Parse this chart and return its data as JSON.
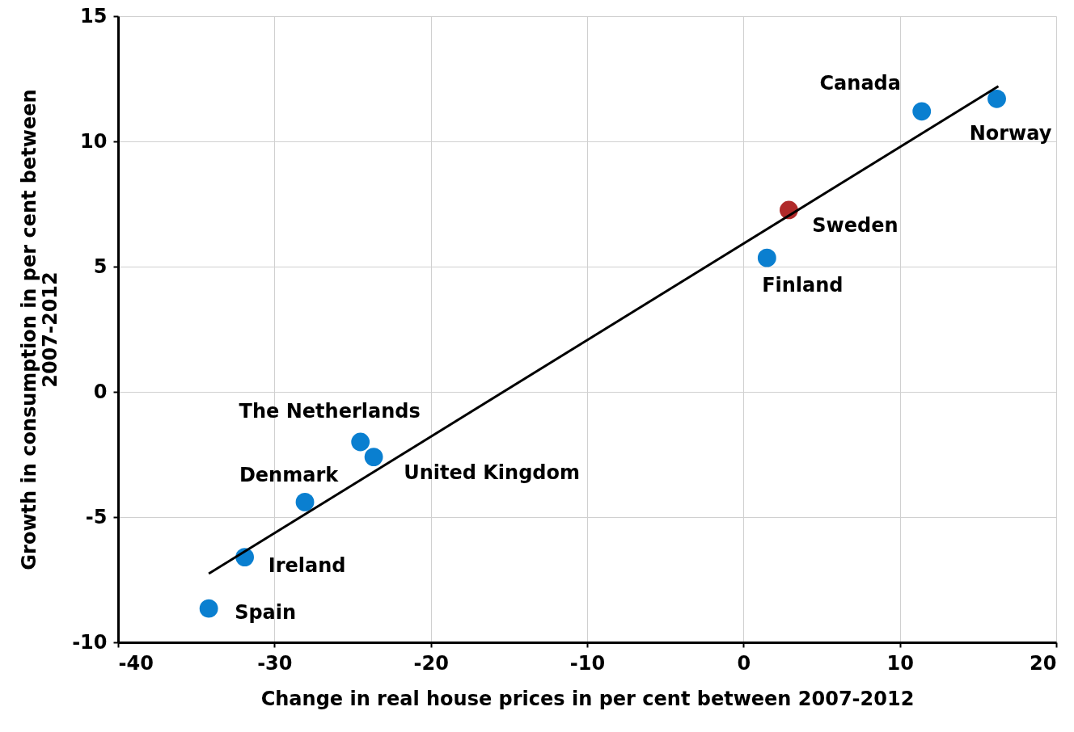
{
  "chart_data": {
    "type": "scatter",
    "xlabel": "Change in real house prices in per cent between 2007-2012",
    "ylabel": "Growth in consumption in per cent between 2007-2012",
    "xlim": [
      -40,
      20
    ],
    "xticks": [
      -40,
      -30,
      -20,
      -10,
      0,
      10,
      20
    ],
    "ylim": [
      -10,
      15
    ],
    "yticks": [
      -10,
      -5,
      0,
      5,
      10,
      15
    ],
    "grid": true,
    "series": [
      {
        "marker": "circle",
        "x": [
          -34.2,
          -31.9,
          -28.05,
          -24.5,
          -23.65,
          1.5,
          2.9,
          11.4,
          16.2
        ],
        "values": [
          -8.65,
          -6.6,
          -4.4,
          -2.0,
          -2.6,
          5.35,
          7.26,
          11.2,
          11.7
        ],
        "colors": [
          "#0a7fd0",
          "#0a7fd0",
          "#0a7fd0",
          "#0a7fd0",
          "#0a7fd0",
          "#0a7fd0",
          "#b02a2a",
          "#0a7fd0",
          "#0a7fd0"
        ]
      },
      {
        "type": "line",
        "x": [
          -34.2,
          16.3
        ],
        "values": [
          -7.26,
          12.2
        ],
        "color": "#000000",
        "line_style": "solid"
      }
    ],
    "annotations": [
      {
        "text": "Spain",
        "x": -34.2,
        "y": -8.65
      },
      {
        "text": "Ireland",
        "x": -31.9,
        "y": -6.6
      },
      {
        "text": "Denmark",
        "x": -28.05,
        "y": -4.4
      },
      {
        "text": "The Netherlands",
        "x": -24.5,
        "y": -2.0
      },
      {
        "text": "United Kingdom",
        "x": -23.65,
        "y": -2.6
      },
      {
        "text": "Finland",
        "x": 1.5,
        "y": 5.35
      },
      {
        "text": "Sweden",
        "x": 2.9,
        "y": 7.26
      },
      {
        "text": "Canada",
        "x": 11.4,
        "y": 11.2
      },
      {
        "text": "Norway",
        "x": 16.2,
        "y": 11.7
      }
    ]
  }
}
